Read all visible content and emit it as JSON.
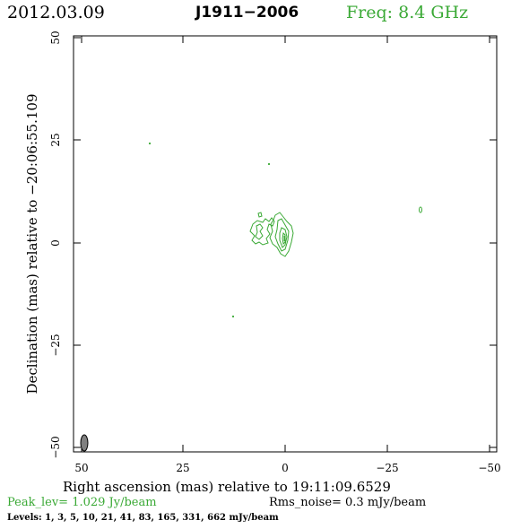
{
  "header": {
    "date": "2012.03.09",
    "source": "J1911−2006",
    "frequency": "Freq: 8.4 GHz"
  },
  "axes": {
    "x_label": "Right ascension (mas) relative to 19:11:09.6529",
    "y_label": "Declination (mas) relative to −20:06:55.109",
    "x_ticks": [
      "50",
      "25",
      "0",
      "−25",
      "−50"
    ],
    "y_ticks": [
      "50",
      "25",
      "0",
      "−25",
      "−50"
    ],
    "x_range": [
      52,
      -52
    ],
    "y_range": [
      -52,
      52
    ]
  },
  "footer": {
    "peak": "Peak_lev=  1.029 Jy/beam",
    "rms": "Rms_noise=  0.3 mJy/beam",
    "levels": "Levels:   1,   3,   5,  10,  21,  41,  83, 165, 331, 662 mJy/beam"
  },
  "colors": {
    "contour": "#3aa935",
    "beam": "#808080"
  }
}
